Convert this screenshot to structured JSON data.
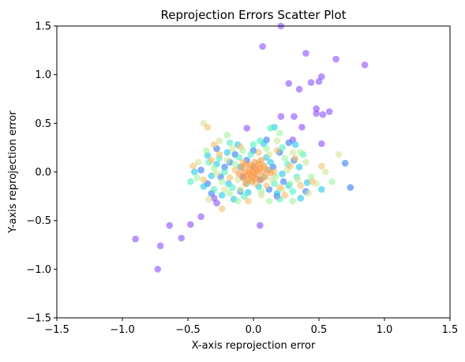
{
  "chart_data": {
    "type": "scatter",
    "title": "Reprojection Errors Scatter Plot",
    "xlabel": "X-axis reprojection error",
    "ylabel": "Y-axis reprojection error",
    "xlim": [
      -1.5,
      1.5
    ],
    "ylim": [
      -1.5,
      1.5
    ],
    "xticks": [
      -1.5,
      -1.0,
      -0.5,
      0.0,
      0.5,
      1.0,
      1.5
    ],
    "yticks": [
      -1.5,
      -1.0,
      -0.5,
      0.0,
      0.5,
      1.0,
      1.5
    ],
    "xtick_labels": [
      "−1.5",
      "−1.0",
      "−0.5",
      "0.0",
      "0.5",
      "1.0",
      "1.5"
    ],
    "ytick_labels": [
      "−1.5",
      "−1.0",
      "−0.5",
      "0.0",
      "0.5",
      "1.0",
      "1.5"
    ],
    "grid": false,
    "legend": "none",
    "colormap": "rainbow",
    "point_alpha": 0.6,
    "points": [
      {
        "x": -0.9,
        "y": -0.69,
        "c": "#8a4fff"
      },
      {
        "x": -0.73,
        "y": -1.0,
        "c": "#8a4fff"
      },
      {
        "x": -0.71,
        "y": -0.76,
        "c": "#8a4fff"
      },
      {
        "x": -0.64,
        "y": -0.55,
        "c": "#8a4fff"
      },
      {
        "x": -0.55,
        "y": -0.68,
        "c": "#8a4fff"
      },
      {
        "x": -0.48,
        "y": -0.54,
        "c": "#8a4fff"
      },
      {
        "x": -0.4,
        "y": -0.46,
        "c": "#8a4fff"
      },
      {
        "x": -0.3,
        "y": -0.27,
        "c": "#8a4fff"
      },
      {
        "x": 0.21,
        "y": 1.5,
        "c": "#8a4fff"
      },
      {
        "x": 0.07,
        "y": 1.29,
        "c": "#8a4fff"
      },
      {
        "x": 0.4,
        "y": 1.22,
        "c": "#8a4fff"
      },
      {
        "x": 0.63,
        "y": 1.16,
        "c": "#8a4fff"
      },
      {
        "x": 0.85,
        "y": 1.1,
        "c": "#8a4fff"
      },
      {
        "x": 0.52,
        "y": 0.98,
        "c": "#8a4fff"
      },
      {
        "x": 0.44,
        "y": 0.92,
        "c": "#8a4fff"
      },
      {
        "x": 0.5,
        "y": 0.93,
        "c": "#8a4fff"
      },
      {
        "x": 0.27,
        "y": 0.91,
        "c": "#8a4fff"
      },
      {
        "x": 0.35,
        "y": 0.85,
        "c": "#8a4fff"
      },
      {
        "x": 0.48,
        "y": 0.65,
        "c": "#8a4fff"
      },
      {
        "x": 0.58,
        "y": 0.62,
        "c": "#8a4fff"
      },
      {
        "x": 0.48,
        "y": 0.6,
        "c": "#8a4fff"
      },
      {
        "x": 0.53,
        "y": 0.59,
        "c": "#8a4fff"
      },
      {
        "x": 0.31,
        "y": 0.57,
        "c": "#8a4fff"
      },
      {
        "x": 0.21,
        "y": 0.57,
        "c": "#8a4fff"
      },
      {
        "x": 0.37,
        "y": 0.46,
        "c": "#8a4fff"
      },
      {
        "x": -0.05,
        "y": 0.45,
        "c": "#8a4fff"
      },
      {
        "x": 0.3,
        "y": 0.33,
        "c": "#8a4fff"
      },
      {
        "x": 0.52,
        "y": 0.29,
        "c": "#8a4fff"
      },
      {
        "x": 0.05,
        "y": -0.55,
        "c": "#8a4fff"
      },
      {
        "x": 0.18,
        "y": -0.25,
        "c": "#8a4fff"
      },
      {
        "x": -0.28,
        "y": -0.32,
        "c": "#8a4fff"
      },
      {
        "x": 0.7,
        "y": 0.09,
        "c": "#2f7cf6"
      },
      {
        "x": 0.74,
        "y": -0.16,
        "c": "#2f7cf6"
      },
      {
        "x": -0.35,
        "y": -0.12,
        "c": "#2f7cf6"
      },
      {
        "x": -0.22,
        "y": 0.05,
        "c": "#2f7cf6"
      },
      {
        "x": -0.1,
        "y": -0.2,
        "c": "#2f7cf6"
      },
      {
        "x": 0.1,
        "y": 0.33,
        "c": "#2f7cf6"
      },
      {
        "x": -0.28,
        "y": 0.24,
        "c": "#2f7cf6"
      },
      {
        "x": 0.27,
        "y": 0.3,
        "c": "#2f7cf6"
      },
      {
        "x": -0.14,
        "y": 0.18,
        "c": "#2f7cf6"
      },
      {
        "x": 0.23,
        "y": -0.1,
        "c": "#2f7cf6"
      },
      {
        "x": -0.25,
        "y": -0.05,
        "c": "#2f7cf6"
      },
      {
        "x": -0.05,
        "y": 0.12,
        "c": "#2f7cf6"
      },
      {
        "x": 0.15,
        "y": 0.05,
        "c": "#2f7cf6"
      },
      {
        "x": -0.4,
        "y": 0.02,
        "c": "#2f7cf6"
      },
      {
        "x": 0.05,
        "y": -0.08,
        "c": "#2f7cf6"
      },
      {
        "x": 0.4,
        "y": -0.2,
        "c": "#2f7cf6"
      },
      {
        "x": -0.18,
        "y": 0.1,
        "c": "#2f7cf6"
      },
      {
        "x": 0.31,
        "y": 0.12,
        "c": "#2f7cf6"
      },
      {
        "x": 0.0,
        "y": 0.22,
        "c": "#2f7cf6"
      },
      {
        "x": -0.32,
        "y": -0.22,
        "c": "#2f7cf6"
      },
      {
        "x": 0.12,
        "y": -0.18,
        "c": "#2f7cf6"
      },
      {
        "x": -0.08,
        "y": -0.05,
        "c": "#2f7cf6"
      },
      {
        "x": 0.2,
        "y": 0.2,
        "c": "#2f7cf6"
      },
      {
        "x": -0.38,
        "y": -0.15,
        "c": "#1fc8e8"
      },
      {
        "x": 0.32,
        "y": 0.28,
        "c": "#1fc8e8"
      },
      {
        "x": 0.16,
        "y": 0.46,
        "c": "#1fc8e8"
      },
      {
        "x": 0.41,
        "y": -0.11,
        "c": "#1fc8e8"
      },
      {
        "x": -0.45,
        "y": 0.0,
        "c": "#1fc8e8"
      },
      {
        "x": -0.35,
        "y": 0.17,
        "c": "#1fc8e8"
      },
      {
        "x": 0.36,
        "y": -0.27,
        "c": "#1fc8e8"
      },
      {
        "x": -0.24,
        "y": -0.24,
        "c": "#1fc8e8"
      },
      {
        "x": 0.08,
        "y": 0.29,
        "c": "#1fc8e8"
      },
      {
        "x": -0.12,
        "y": 0.28,
        "c": "#1fc8e8"
      },
      {
        "x": 0.52,
        "y": -0.18,
        "c": "#1fc8e8"
      },
      {
        "x": -0.19,
        "y": -0.12,
        "c": "#1fc8e8"
      },
      {
        "x": 0.22,
        "y": -0.02,
        "c": "#1fc8e8"
      },
      {
        "x": -0.04,
        "y": -0.21,
        "c": "#1fc8e8"
      },
      {
        "x": 0.1,
        "y": 0.15,
        "c": "#1fc8e8"
      },
      {
        "x": -0.28,
        "y": 0.08,
        "c": "#1fc8e8"
      },
      {
        "x": 0.27,
        "y": -0.14,
        "c": "#1fc8e8"
      },
      {
        "x": -0.1,
        "y": 0.05,
        "c": "#1fc8e8"
      },
      {
        "x": 0.04,
        "y": -0.15,
        "c": "#1fc8e8"
      },
      {
        "x": -0.2,
        "y": 0.2,
        "c": "#1fc8e8"
      },
      {
        "x": 0.13,
        "y": 0.1,
        "c": "#1fc8e8"
      },
      {
        "x": -0.32,
        "y": -0.04,
        "c": "#1fc8e8"
      },
      {
        "x": 0.18,
        "y": -0.22,
        "c": "#1fc8e8"
      },
      {
        "x": 0.0,
        "y": 0.05,
        "c": "#1fc8e8"
      },
      {
        "x": -0.15,
        "y": -0.28,
        "c": "#1fc8e8"
      },
      {
        "x": 0.35,
        "y": 0.05,
        "c": "#1fc8e8"
      },
      {
        "x": -0.48,
        "y": -0.1,
        "c": "#4ff0c0"
      },
      {
        "x": 0.13,
        "y": 0.45,
        "c": "#4ff0c0"
      },
      {
        "x": 0.38,
        "y": 0.18,
        "c": "#4ff0c0"
      },
      {
        "x": -0.34,
        "y": 0.1,
        "c": "#4ff0c0"
      },
      {
        "x": 0.3,
        "y": -0.2,
        "c": "#4ff0c0"
      },
      {
        "x": -0.18,
        "y": 0.3,
        "c": "#4ff0c0"
      },
      {
        "x": 0.22,
        "y": 0.25,
        "c": "#4ff0c0"
      },
      {
        "x": -0.3,
        "y": -0.18,
        "c": "#4ff0c0"
      },
      {
        "x": 0.05,
        "y": 0.32,
        "c": "#4ff0c0"
      },
      {
        "x": -0.07,
        "y": -0.25,
        "c": "#4ff0c0"
      },
      {
        "x": 0.16,
        "y": -0.12,
        "c": "#4ff0c0"
      },
      {
        "x": -0.22,
        "y": 0.0,
        "c": "#4ff0c0"
      },
      {
        "x": 0.26,
        "y": 0.08,
        "c": "#4ff0c0"
      },
      {
        "x": -0.11,
        "y": 0.15,
        "c": "#4ff0c0"
      },
      {
        "x": 0.08,
        "y": -0.05,
        "c": "#4ff0c0"
      },
      {
        "x": -0.26,
        "y": 0.14,
        "c": "#4ff0c0"
      },
      {
        "x": 0.2,
        "y": -0.28,
        "c": "#4ff0c0"
      },
      {
        "x": -0.02,
        "y": 0.18,
        "c": "#4ff0c0"
      },
      {
        "x": 0.11,
        "y": 0.02,
        "c": "#4ff0c0"
      },
      {
        "x": -0.16,
        "y": -0.16,
        "c": "#4ff0c0"
      },
      {
        "x": 0.33,
        "y": -0.05,
        "c": "#4ff0c0"
      },
      {
        "x": -0.05,
        "y": -0.12,
        "c": "#4ff0c0"
      },
      {
        "x": 0.0,
        "y": 0.28,
        "c": "#4ff0c0"
      },
      {
        "x": 0.6,
        "y": -0.1,
        "c": "#9ef7a0"
      },
      {
        "x": -0.43,
        "y": -0.06,
        "c": "#9ef7a0"
      },
      {
        "x": 0.44,
        "y": -0.05,
        "c": "#9ef7a0"
      },
      {
        "x": 0.3,
        "y": -0.3,
        "c": "#9ef7a0"
      },
      {
        "x": -0.2,
        "y": 0.38,
        "c": "#9ef7a0"
      },
      {
        "x": 0.2,
        "y": 0.4,
        "c": "#9ef7a0"
      },
      {
        "x": -0.36,
        "y": 0.22,
        "c": "#9ef7a0"
      },
      {
        "x": 0.12,
        "y": -0.3,
        "c": "#9ef7a0"
      },
      {
        "x": -0.12,
        "y": -0.3,
        "c": "#9ef7a0"
      },
      {
        "x": 0.36,
        "y": 0.2,
        "c": "#9ef7a0"
      },
      {
        "x": -0.24,
        "y": -0.1,
        "c": "#9ef7a0"
      },
      {
        "x": 0.24,
        "y": 0.14,
        "c": "#9ef7a0"
      },
      {
        "x": -0.08,
        "y": 0.22,
        "c": "#9ef7a0"
      },
      {
        "x": 0.06,
        "y": -0.2,
        "c": "#9ef7a0"
      },
      {
        "x": -0.3,
        "y": 0.04,
        "c": "#9ef7a0"
      },
      {
        "x": 0.17,
        "y": -0.05,
        "c": "#9ef7a0"
      },
      {
        "x": -0.14,
        "y": 0.08,
        "c": "#9ef7a0"
      },
      {
        "x": 0.1,
        "y": 0.24,
        "c": "#9ef7a0"
      },
      {
        "x": -0.02,
        "y": -0.08,
        "c": "#9ef7a0"
      },
      {
        "x": 0.28,
        "y": -0.12,
        "c": "#9ef7a0"
      },
      {
        "x": -0.18,
        "y": -0.22,
        "c": "#9ef7a0"
      },
      {
        "x": 0.04,
        "y": 0.1,
        "c": "#9ef7a0"
      },
      {
        "x": 0.55,
        "y": 0.0,
        "c": "#d0e69a"
      },
      {
        "x": -0.38,
        "y": 0.5,
        "c": "#d0e69a"
      },
      {
        "x": 0.65,
        "y": 0.18,
        "c": "#d0e69a"
      },
      {
        "x": 0.48,
        "y": -0.12,
        "c": "#d0e69a"
      },
      {
        "x": -0.42,
        "y": 0.1,
        "c": "#d0e69a"
      },
      {
        "x": 0.4,
        "y": 0.1,
        "c": "#d0e69a"
      },
      {
        "x": -0.26,
        "y": 0.32,
        "c": "#d0e69a"
      },
      {
        "x": 0.3,
        "y": 0.2,
        "c": "#d0e69a"
      },
      {
        "x": -0.34,
        "y": -0.28,
        "c": "#d0e69a"
      },
      {
        "x": 0.18,
        "y": 0.32,
        "c": "#d0e69a"
      },
      {
        "x": -0.1,
        "y": -0.18,
        "c": "#d0e69a"
      },
      {
        "x": 0.22,
        "y": -0.18,
        "c": "#d0e69a"
      },
      {
        "x": -0.2,
        "y": 0.12,
        "c": "#d0e69a"
      },
      {
        "x": 0.12,
        "y": 0.18,
        "c": "#d0e69a"
      },
      {
        "x": -0.06,
        "y": 0.02,
        "c": "#d0e69a"
      },
      {
        "x": 0.34,
        "y": -0.08,
        "c": "#d0e69a"
      },
      {
        "x": -0.28,
        "y": -0.02,
        "c": "#d0e69a"
      },
      {
        "x": 0.06,
        "y": -0.24,
        "c": "#d0e69a"
      },
      {
        "x": -0.16,
        "y": 0.24,
        "c": "#d0e69a"
      },
      {
        "x": 0.26,
        "y": 0.02,
        "c": "#d0e69a"
      },
      {
        "x": 0.0,
        "y": -0.02,
        "c": "#d0e69a"
      },
      {
        "x": -0.12,
        "y": -0.08,
        "c": "#d0e69a"
      },
      {
        "x": 0.14,
        "y": -0.08,
        "c": "#d0e69a"
      },
      {
        "x": -0.22,
        "y": -0.18,
        "c": "#d0e69a"
      },
      {
        "x": 0.08,
        "y": 0.06,
        "c": "#d0e69a"
      },
      {
        "x": 0.42,
        "y": -0.22,
        "c": "#d0e69a"
      },
      {
        "x": -0.35,
        "y": 0.46,
        "c": "#f4c070"
      },
      {
        "x": 0.52,
        "y": 0.06,
        "c": "#f4c070"
      },
      {
        "x": -0.24,
        "y": -0.38,
        "c": "#f4c070"
      },
      {
        "x": 0.45,
        "y": -0.1,
        "c": "#f4c070"
      },
      {
        "x": -0.46,
        "y": 0.06,
        "c": "#f4c070"
      },
      {
        "x": 0.36,
        "y": -0.14,
        "c": "#f4c070"
      },
      {
        "x": -0.3,
        "y": 0.28,
        "c": "#f4c070"
      },
      {
        "x": 0.32,
        "y": 0.14,
        "c": "#f4c070"
      },
      {
        "x": -0.38,
        "y": -0.08,
        "c": "#f4c070"
      },
      {
        "x": 0.24,
        "y": -0.24,
        "c": "#f4c070"
      },
      {
        "x": -0.18,
        "y": -0.06,
        "c": "#f4c070"
      },
      {
        "x": 0.18,
        "y": 0.22,
        "c": "#f4c070"
      },
      {
        "x": -0.1,
        "y": 0.26,
        "c": "#f4c070"
      },
      {
        "x": 0.1,
        "y": -0.14,
        "c": "#f4c070"
      },
      {
        "x": -0.26,
        "y": 0.18,
        "c": "#f4c070"
      },
      {
        "x": 0.28,
        "y": 0.06,
        "c": "#f4c070"
      },
      {
        "x": -0.04,
        "y": -0.3,
        "c": "#f4c070"
      },
      {
        "x": 0.04,
        "y": 0.2,
        "c": "#f4c070"
      },
      {
        "x": -0.14,
        "y": 0.02,
        "c": "#f4c070"
      },
      {
        "x": 0.16,
        "y": 0.0,
        "c": "#f4c070"
      },
      {
        "x": -0.08,
        "y": 0.1,
        "c": "#f4c070"
      },
      {
        "x": 0.02,
        "y": -0.12,
        "c": "#f4c070"
      },
      {
        "x": -0.32,
        "y": 0.12,
        "c": "#f4c070"
      },
      {
        "x": 0.2,
        "y": -0.16,
        "c": "#f4c070"
      },
      {
        "x": 0.0,
        "y": 0.0,
        "c": "#ff9a4a"
      },
      {
        "x": -0.03,
        "y": 0.03,
        "c": "#ff9a4a"
      },
      {
        "x": 0.03,
        "y": -0.03,
        "c": "#ff9a4a"
      },
      {
        "x": -0.05,
        "y": -0.04,
        "c": "#ff9a4a"
      },
      {
        "x": 0.05,
        "y": 0.04,
        "c": "#ff9a4a"
      },
      {
        "x": -0.02,
        "y": 0.07,
        "c": "#ff9a4a"
      },
      {
        "x": 0.02,
        "y": -0.07,
        "c": "#ff9a4a"
      },
      {
        "x": -0.07,
        "y": 0.0,
        "c": "#ff9a4a"
      },
      {
        "x": 0.07,
        "y": 0.0,
        "c": "#ff9a4a"
      },
      {
        "x": -0.01,
        "y": -0.1,
        "c": "#ff9a4a"
      },
      {
        "x": 0.01,
        "y": 0.1,
        "c": "#ff9a4a"
      },
      {
        "x": -0.09,
        "y": 0.05,
        "c": "#ff9a4a"
      },
      {
        "x": 0.09,
        "y": -0.05,
        "c": "#ff9a4a"
      },
      {
        "x": -0.04,
        "y": -0.08,
        "c": "#ff9a4a"
      },
      {
        "x": 0.04,
        "y": 0.08,
        "c": "#ff9a4a"
      },
      {
        "x": -0.06,
        "y": 0.08,
        "c": "#ff9a4a"
      },
      {
        "x": 0.06,
        "y": -0.08,
        "c": "#ff9a4a"
      },
      {
        "x": 0.0,
        "y": 0.05,
        "c": "#ff9a4a"
      },
      {
        "x": 0.0,
        "y": -0.05,
        "c": "#ff9a4a"
      },
      {
        "x": -0.11,
        "y": -0.02,
        "c": "#ff9a4a"
      },
      {
        "x": 0.11,
        "y": 0.02,
        "c": "#ff9a4a"
      },
      {
        "x": -0.03,
        "y": -0.01,
        "c": "#ff9a4a"
      },
      {
        "x": 0.03,
        "y": 0.01,
        "c": "#ff9a4a"
      },
      {
        "x": 0.08,
        "y": 0.06,
        "c": "#ff9a4a"
      },
      {
        "x": -0.08,
        "y": -0.06,
        "c": "#ff9a4a"
      },
      {
        "x": 0.02,
        "y": 0.03,
        "c": "#ff9a4a"
      },
      {
        "x": -0.02,
        "y": -0.03,
        "c": "#ff9a4a"
      },
      {
        "x": 0.06,
        "y": 0.12,
        "c": "#ff9a4a"
      },
      {
        "x": -0.06,
        "y": -0.12,
        "c": "#ff9a4a"
      },
      {
        "x": 0.13,
        "y": -0.01,
        "c": "#ff9a4a"
      }
    ]
  }
}
